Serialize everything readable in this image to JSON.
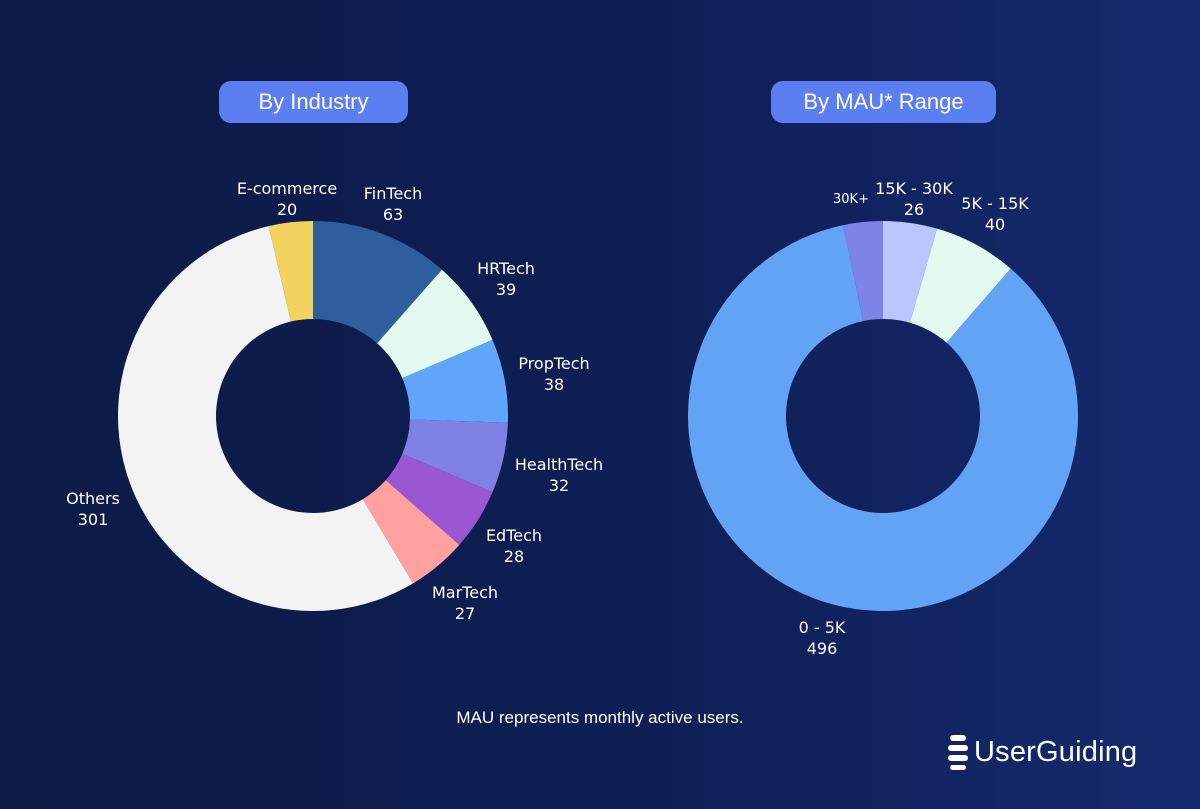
{
  "chart_data": [
    {
      "type": "pie",
      "title": "By Industry",
      "categories": [
        "FinTech",
        "HRTech",
        "PropTech",
        "HealthTech",
        "EdTech",
        "MarTech",
        "Others",
        "E-commerce"
      ],
      "values": [
        63,
        39,
        38,
        32,
        28,
        27,
        301,
        20
      ],
      "colors": [
        "#2e5f9c",
        "#e3faf0",
        "#60a5fa",
        "#7e80e6",
        "#9b57d3",
        "#ffa1a1",
        "#f3f3f3",
        "#f2d35f"
      ],
      "labels": [
        {
          "name": "FinTech",
          "value": "63"
        },
        {
          "name": "HRTech",
          "value": "39"
        },
        {
          "name": "PropTech",
          "value": "38"
        },
        {
          "name": "HealthTech",
          "value": "32"
        },
        {
          "name": "EdTech",
          "value": "28"
        },
        {
          "name": "MarTech",
          "value": "27"
        },
        {
          "name": "Others",
          "value": "301"
        },
        {
          "name": "E-commerce",
          "value": "20"
        }
      ]
    },
    {
      "type": "pie",
      "title": "By MAU* Range",
      "categories": [
        "15K - 30K",
        "5K - 15K",
        "0 - 5K",
        "30K+"
      ],
      "values": [
        26,
        40,
        496,
        19
      ],
      "colors": [
        "#b9c6ff",
        "#e3faf0",
        "#63a3f6",
        "#7e83e8"
      ],
      "labels": [
        {
          "name": "15K - 30K",
          "value": "26"
        },
        {
          "name": "5K - 15K",
          "value": "40"
        },
        {
          "name": "0 - 5K",
          "value": "496"
        },
        {
          "name": "30K+",
          "value": ""
        }
      ]
    }
  ],
  "footnote": "MAU represents monthly active users.",
  "brand": {
    "name": "UserGuiding",
    "icon": "userguiding-logo-icon"
  }
}
